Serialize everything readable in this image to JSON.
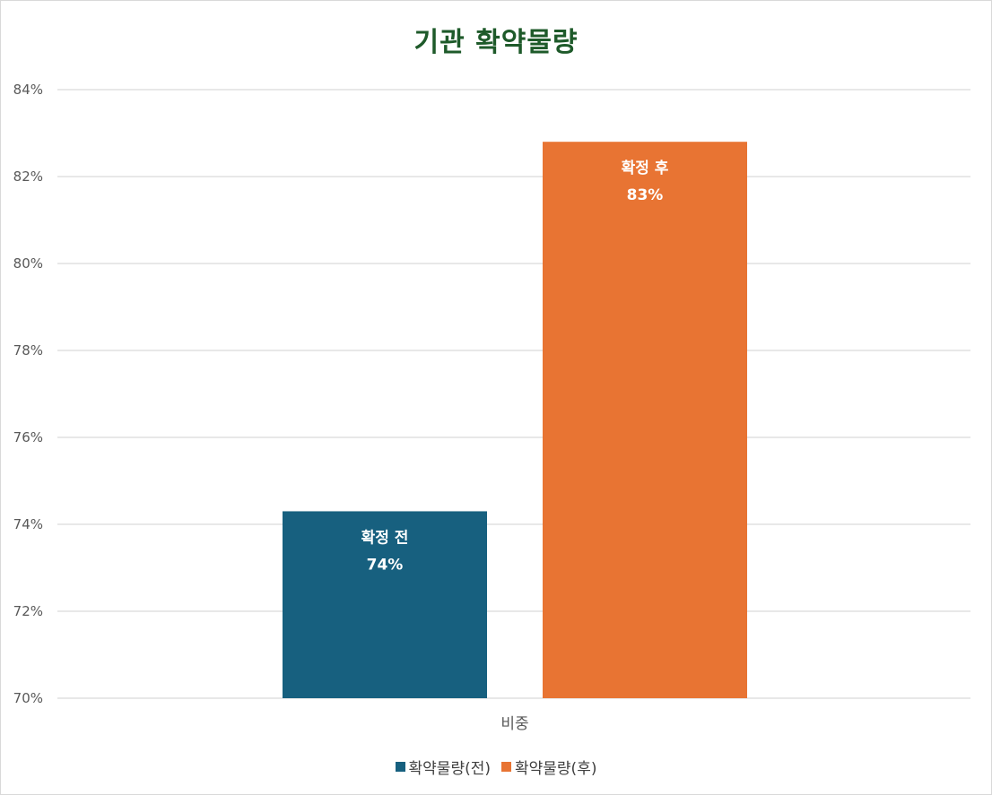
{
  "chart_data": {
    "type": "bar",
    "title": "기관 확약물량",
    "categories": [
      "비중"
    ],
    "series": [
      {
        "name": "확약물량(전)",
        "values": [
          74.3
        ],
        "color": "#17607f",
        "label_name": "확정 전",
        "label_value": "74%"
      },
      {
        "name": "확약물량(후)",
        "values": [
          82.8
        ],
        "color": "#e87433",
        "label_name": "확정 후",
        "label_value": "83%"
      }
    ],
    "ylim": [
      70,
      84
    ],
    "yticks": [
      70,
      72,
      74,
      76,
      78,
      80,
      82,
      84
    ],
    "ytick_labels": [
      "70%",
      "72%",
      "74%",
      "76%",
      "78%",
      "80%",
      "82%",
      "84%"
    ],
    "grid": true,
    "legend_position": "bottom",
    "xlabel": "",
    "ylabel": ""
  }
}
